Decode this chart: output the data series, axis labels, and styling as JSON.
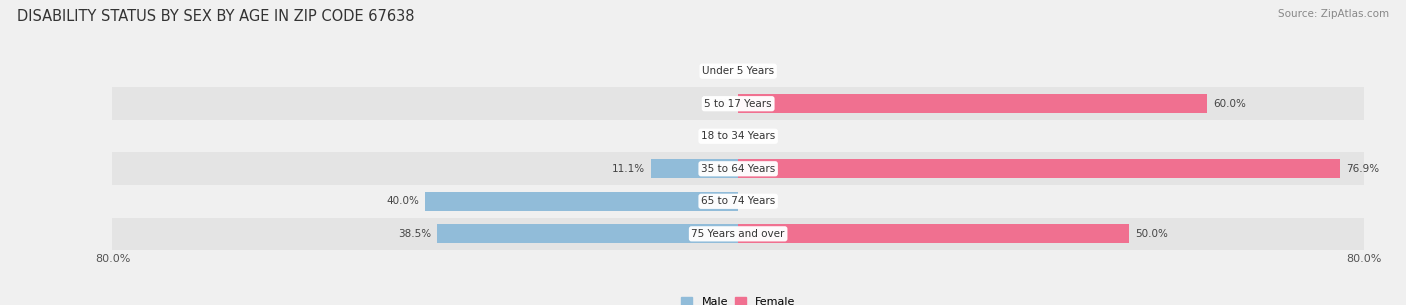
{
  "title": "DISABILITY STATUS BY SEX BY AGE IN ZIP CODE 67638",
  "source": "Source: ZipAtlas.com",
  "categories": [
    "Under 5 Years",
    "5 to 17 Years",
    "18 to 34 Years",
    "35 to 64 Years",
    "65 to 74 Years",
    "75 Years and over"
  ],
  "male_values": [
    0.0,
    0.0,
    0.0,
    11.1,
    40.0,
    38.5
  ],
  "female_values": [
    0.0,
    60.0,
    0.0,
    76.9,
    0.0,
    50.0
  ],
  "male_color": "#91bcd9",
  "female_color": "#f07090",
  "xlim": 80.0,
  "bar_height": 0.58,
  "row_bg_light": "#f0f0f0",
  "row_bg_dark": "#e4e4e4",
  "fig_bg": "#f0f0f0",
  "title_fontsize": 10.5,
  "tick_fontsize": 8,
  "label_fontsize": 7.5,
  "cat_fontsize": 7.5,
  "source_fontsize": 7.5
}
